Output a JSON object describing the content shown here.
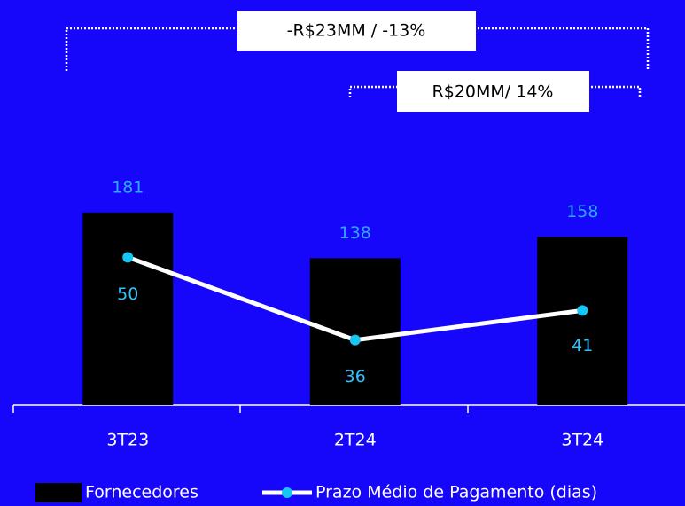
{
  "chart_data": {
    "type": "bar_line",
    "categories": [
      "3T23",
      "2T24",
      "3T24"
    ],
    "series": [
      {
        "name": "Fornecedores",
        "type": "bar",
        "color": "#000000",
        "label_color": "#2fa8ff",
        "values": [
          181,
          138,
          158
        ]
      },
      {
        "name": "Prazo Médio de Pagamento (dias)",
        "type": "line",
        "axis": "y2",
        "color": "#ffffff",
        "marker_color": "#16c6f5",
        "label_color": "#2fc4ff",
        "values": [
          50,
          36,
          41
        ]
      }
    ],
    "ylim": [
      0,
      200
    ],
    "y2lim": [
      25,
      61
    ],
    "annotations": [
      "-R$23MM / -13%",
      "R$20MM/ 14%"
    ],
    "background": "#1607fb"
  }
}
